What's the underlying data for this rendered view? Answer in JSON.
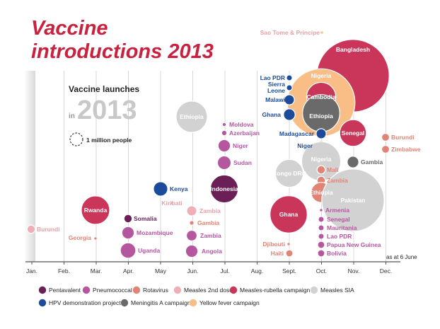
{
  "chart_data": {
    "type": "bubble-timeline",
    "title_line1": "Vaccine",
    "title_line2": "introductions 2013",
    "subtitle_line1": "Vaccine launches",
    "subtitle_in": "in",
    "subtitle_year": "2013",
    "size_key_label": "1 million people",
    "note": "as at 6 June",
    "x_axis": {
      "categories": [
        "Jan.",
        "Feb.",
        "Mar.",
        "Apr.",
        "May",
        "Jun.",
        "Jul.",
        "Aug.",
        "Sept.",
        "Oct.",
        "Nov.",
        "Dec."
      ]
    },
    "categories": [
      {
        "key": "pentavalent",
        "name": "Pentavalent",
        "color": "#6b1f57"
      },
      {
        "key": "pneumococcal",
        "name": "Pneumococcal",
        "color": "#b5579f"
      },
      {
        "key": "rotavirus",
        "name": "Rotavirus",
        "color": "#e08575"
      },
      {
        "key": "measles2",
        "name": "Measles 2nd dose",
        "color": "#eeb0b6"
      },
      {
        "key": "mr",
        "name": "Measles-rubella campaign",
        "color": "#c93659"
      },
      {
        "key": "sia",
        "name": "Measles SIA",
        "color": "#d2d2d2"
      },
      {
        "key": "hpv",
        "name": "HPV demonstration project",
        "color": "#1b4b9a"
      },
      {
        "key": "mena",
        "name": "Meningitis A campaign",
        "color": "#6a6a6a"
      },
      {
        "key": "yf",
        "name": "Yellow fever campaign",
        "color": "#f8be86"
      }
    ],
    "points": [
      {
        "country": "Burundi",
        "category": "measles2",
        "month": 1,
        "size_m": 0.2
      },
      {
        "country": "Georgia",
        "category": "rotavirus",
        "month": 3,
        "size_m": 0.01
      },
      {
        "country": "Rwanda",
        "category": "mr",
        "month": 3,
        "size_m": 2.4
      },
      {
        "country": "Somalia",
        "category": "pentavalent",
        "month": 4,
        "size_m": 0.2
      },
      {
        "country": "Mozambique",
        "category": "pneumococcal",
        "month": 4,
        "size_m": 0.45
      },
      {
        "country": "Uganda",
        "category": "pneumococcal",
        "month": 4,
        "size_m": 0.7
      },
      {
        "country": "Kenya",
        "category": "hpv",
        "month": 5,
        "size_m": 0.6
      },
      {
        "country": "Kiribati",
        "category": "measles2",
        "month": 5,
        "size_m": 0.002
      },
      {
        "country": "Ethiopia",
        "category": "sia",
        "month": 6,
        "size_m": 2.9
      },
      {
        "country": "Zambia",
        "category": "measles2",
        "month": 6,
        "size_m": 0.3
      },
      {
        "country": "Gambia",
        "category": "rotavirus",
        "month": 6,
        "size_m": 0.06
      },
      {
        "country": "Zambia",
        "category": "pneumococcal",
        "month": 6,
        "size_m": 0.33
      },
      {
        "country": "Angola",
        "category": "pneumococcal",
        "month": 6,
        "size_m": 0.45
      },
      {
        "country": "Moldova",
        "category": "pneumococcal",
        "month": 7,
        "size_m": 0.03
      },
      {
        "country": "Azerbaijan",
        "category": "pneumococcal",
        "month": 7,
        "size_m": 0.08
      },
      {
        "country": "Niger",
        "category": "pneumococcal",
        "month": 7,
        "size_m": 0.45
      },
      {
        "country": "Sudan",
        "category": "pneumococcal",
        "month": 7,
        "size_m": 0.55
      },
      {
        "country": "Indonesia",
        "category": "pentavalent",
        "month": 7,
        "size_m": 2.3
      },
      {
        "country": "Sao Tome & Principe",
        "category": "yf",
        "month": 10,
        "size_m": 0.01
      },
      {
        "country": "Bangladesh",
        "category": "mr",
        "month": 11,
        "size_m": 15.5
      },
      {
        "country": "Nigeria",
        "category": "yf",
        "month": 9,
        "size_m": 13.5
      },
      {
        "country": "Lao PDR",
        "category": "hpv",
        "month": 9,
        "size_m": 0.1
      },
      {
        "country": "Sierra Leone",
        "category": "hpv",
        "month": 9,
        "size_m": 0.1
      },
      {
        "country": "Malawi",
        "category": "hpv",
        "month": 9,
        "size_m": 0.3
      },
      {
        "country": "Ghana",
        "category": "hpv",
        "month": 9,
        "size_m": 0.4
      },
      {
        "country": "Cambodia",
        "category": "mr",
        "month": 10,
        "size_m": 2.5
      },
      {
        "country": "Ethiopia",
        "category": "mena",
        "month": 10,
        "size_m": 4.1
      },
      {
        "country": "Madagascar",
        "category": "hpv",
        "month": 10,
        "size_m": 0.3
      },
      {
        "country": "Niger",
        "category": "hpv",
        "month": 10,
        "size_m": 0.3
      },
      {
        "country": "Senegal",
        "category": "mr",
        "month": 11,
        "size_m": 2.1
      },
      {
        "country": "Burundi",
        "category": "rotavirus",
        "month": 12,
        "size_m": 0.18
      },
      {
        "country": "Zimbabwe",
        "category": "rotavirus",
        "month": 12,
        "size_m": 0.18
      },
      {
        "country": "Nigeria",
        "category": "sia",
        "month": 10,
        "size_m": 4.5
      },
      {
        "country": "Gambia",
        "category": "mena",
        "month": 11,
        "size_m": 0.4
      },
      {
        "country": "Congo DRC",
        "category": "sia",
        "month": 9,
        "size_m": 2.3
      },
      {
        "country": "Mali",
        "category": "rotavirus",
        "month": 10,
        "size_m": 0.2
      },
      {
        "country": "Zambia",
        "category": "rotavirus",
        "month": 10,
        "size_m": 0.2
      },
      {
        "country": "Ethiopia",
        "category": "rotavirus",
        "month": 10,
        "size_m": 1.2
      },
      {
        "country": "Pakistan",
        "category": "sia",
        "month": 11,
        "size_m": 11.5
      },
      {
        "country": "Ghana",
        "category": "mr",
        "month": 9,
        "size_m": 4.1
      },
      {
        "country": "Armenia",
        "category": "pneumococcal",
        "month": 10,
        "size_m": 0.02
      },
      {
        "country": "Senegal",
        "category": "pneumococcal",
        "month": 10,
        "size_m": 0.1
      },
      {
        "country": "Mauritania",
        "category": "pneumococcal",
        "month": 10,
        "size_m": 0.1
      },
      {
        "country": "Lao PDR",
        "category": "pneumococcal",
        "month": 10,
        "size_m": 0.1
      },
      {
        "country": "Papua New Guinea",
        "category": "pneumococcal",
        "month": 10,
        "size_m": 0.15
      },
      {
        "country": "Bolivia",
        "category": "pneumococcal",
        "month": 10,
        "size_m": 0.15
      },
      {
        "country": "Djibouti",
        "category": "rotavirus",
        "month": 9,
        "size_m": 0.01
      },
      {
        "country": "Haiti",
        "category": "rotavirus",
        "month": 9,
        "size_m": 0.15
      }
    ]
  }
}
